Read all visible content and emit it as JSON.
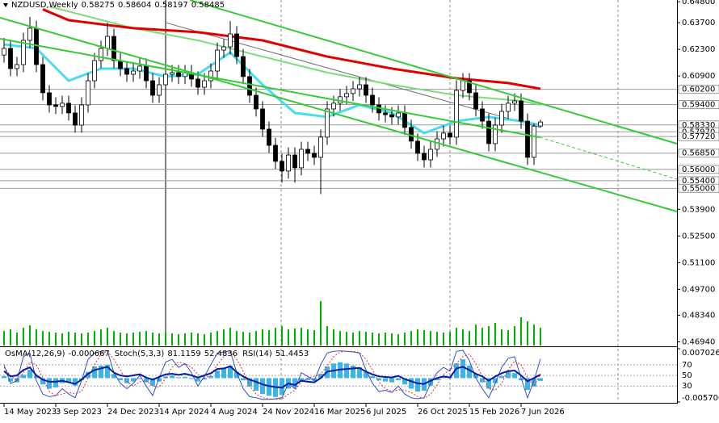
{
  "chart_data": {
    "type": "candlestick",
    "symbol": "NZDUSD,Weekly",
    "candles": [
      [
        0.62,
        0.629,
        0.616,
        0.6235
      ],
      [
        0.6235,
        0.6275,
        0.6089,
        0.6129
      ],
      [
        0.6129,
        0.619,
        0.6089,
        0.615
      ],
      [
        0.615,
        0.6317,
        0.611,
        0.6277
      ],
      [
        0.6277,
        0.64,
        0.6237,
        0.6341
      ],
      [
        0.6341,
        0.6381,
        0.611,
        0.615
      ],
      [
        0.615,
        0.619,
        0.5962,
        0.6002
      ],
      [
        0.6002,
        0.6042,
        0.5898,
        0.5938
      ],
      [
        0.5938,
        0.5978,
        0.589,
        0.593
      ],
      [
        0.593,
        0.5987,
        0.589,
        0.5947
      ],
      [
        0.5947,
        0.5987,
        0.5856,
        0.5896
      ],
      [
        0.5896,
        0.5936,
        0.5792,
        0.5832
      ],
      [
        0.5832,
        0.5978,
        0.5792,
        0.5938
      ],
      [
        0.5938,
        0.6105,
        0.5898,
        0.6065
      ],
      [
        0.6065,
        0.6211,
        0.6025,
        0.6171
      ],
      [
        0.6171,
        0.6275,
        0.6131,
        0.6235
      ],
      [
        0.6235,
        0.637,
        0.6195,
        0.6298
      ],
      [
        0.6298,
        0.6338,
        0.6131,
        0.6171
      ],
      [
        0.6171,
        0.6211,
        0.6089,
        0.6129
      ],
      [
        0.6129,
        0.6169,
        0.6059,
        0.6099
      ],
      [
        0.6099,
        0.6156,
        0.6059,
        0.6116
      ],
      [
        0.6116,
        0.6182,
        0.6076,
        0.6142
      ],
      [
        0.6142,
        0.6182,
        0.6025,
        0.6065
      ],
      [
        0.6065,
        0.6105,
        0.5949,
        0.5989
      ],
      [
        0.5989,
        0.6084,
        0.5949,
        0.6044
      ],
      [
        0.6044,
        0.6139,
        0.6004,
        0.6099
      ],
      [
        0.6099,
        0.6148,
        0.6059,
        0.6108
      ],
      [
        0.6108,
        0.6148,
        0.6047,
        0.6087
      ],
      [
        0.6087,
        0.6148,
        0.6047,
        0.6108
      ],
      [
        0.6108,
        0.6148,
        0.6034,
        0.6074
      ],
      [
        0.6074,
        0.6114,
        0.5991,
        0.6031
      ],
      [
        0.6031,
        0.6105,
        0.5991,
        0.6065
      ],
      [
        0.6065,
        0.6156,
        0.6025,
        0.6116
      ],
      [
        0.6116,
        0.6266,
        0.6076,
        0.6226
      ],
      [
        0.6226,
        0.6283,
        0.6186,
        0.6243
      ],
      [
        0.6243,
        0.6378,
        0.6203,
        0.6311
      ],
      [
        0.6311,
        0.6351,
        0.6152,
        0.6192
      ],
      [
        0.6192,
        0.6232,
        0.6047,
        0.6087
      ],
      [
        0.6087,
        0.6127,
        0.5949,
        0.5989
      ],
      [
        0.5989,
        0.6029,
        0.5877,
        0.5917
      ],
      [
        0.5917,
        0.5957,
        0.5771,
        0.5811
      ],
      [
        0.5811,
        0.5851,
        0.5686,
        0.5726
      ],
      [
        0.5726,
        0.5766,
        0.5602,
        0.5642
      ],
      [
        0.5642,
        0.5682,
        0.553,
        0.5591
      ],
      [
        0.5591,
        0.5715,
        0.5551,
        0.5675
      ],
      [
        0.5675,
        0.5715,
        0.553,
        0.5608
      ],
      [
        0.5608,
        0.5745,
        0.5568,
        0.5705
      ],
      [
        0.5705,
        0.5745,
        0.5644,
        0.5684
      ],
      [
        0.5684,
        0.5724,
        0.5623,
        0.5663
      ],
      [
        0.5663,
        0.5809,
        0.547,
        0.5769
      ],
      [
        0.5769,
        0.5957,
        0.5729,
        0.5917
      ],
      [
        0.5917,
        0.5987,
        0.5877,
        0.5947
      ],
      [
        0.5947,
        0.6021,
        0.5907,
        0.5981
      ],
      [
        0.5981,
        0.6038,
        0.5941,
        0.5998
      ],
      [
        0.5998,
        0.6063,
        0.5958,
        0.6023
      ],
      [
        0.6023,
        0.6084,
        0.5983,
        0.6044
      ],
      [
        0.6044,
        0.6084,
        0.5949,
        0.5989
      ],
      [
        0.5989,
        0.6029,
        0.5898,
        0.5938
      ],
      [
        0.5938,
        0.5978,
        0.5856,
        0.5896
      ],
      [
        0.5896,
        0.5936,
        0.5847,
        0.5887
      ],
      [
        0.5887,
        0.5927,
        0.5835,
        0.5875
      ],
      [
        0.5875,
        0.5936,
        0.5835,
        0.5896
      ],
      [
        0.5896,
        0.5936,
        0.578,
        0.582
      ],
      [
        0.582,
        0.586,
        0.5708,
        0.5748
      ],
      [
        0.5748,
        0.5788,
        0.5644,
        0.5684
      ],
      [
        0.5684,
        0.5724,
        0.561,
        0.565
      ],
      [
        0.565,
        0.5745,
        0.561,
        0.5705
      ],
      [
        0.5705,
        0.58,
        0.5665,
        0.576
      ],
      [
        0.576,
        0.583,
        0.572,
        0.579
      ],
      [
        0.579,
        0.583,
        0.5729,
        0.5769
      ],
      [
        0.5769,
        0.6068,
        0.5729,
        0.6014
      ],
      [
        0.6014,
        0.6105,
        0.5974,
        0.6065
      ],
      [
        0.6065,
        0.6105,
        0.5962,
        0.6002
      ],
      [
        0.6002,
        0.6042,
        0.5877,
        0.5917
      ],
      [
        0.5917,
        0.5957,
        0.5813,
        0.5853
      ],
      [
        0.5853,
        0.5893,
        0.5695,
        0.5735
      ],
      [
        0.5735,
        0.5872,
        0.5695,
        0.5832
      ],
      [
        0.5832,
        0.5944,
        0.5792,
        0.5904
      ],
      [
        0.5904,
        0.5987,
        0.5864,
        0.5947
      ],
      [
        0.5947,
        0.5999,
        0.5907,
        0.5959
      ],
      [
        0.5959,
        0.5999,
        0.5813,
        0.5853
      ],
      [
        0.5853,
        0.5893,
        0.5623,
        0.5663
      ],
      [
        0.5663,
        0.584,
        0.5623,
        0.5827
      ],
      [
        0.58275,
        0.58604,
        0.58197,
        0.58485
      ]
    ],
    "ylim": [
      0.4675,
      0.6489
    ],
    "yticks": [
      {
        "value": 0.648,
        "label": "0.64800"
      },
      {
        "value": 0.637,
        "label": "0.63700"
      },
      {
        "value": 0.623,
        "label": "0.62300"
      },
      {
        "value": 0.609,
        "label": "0.60900"
      },
      {
        "value": 0.539,
        "label": "0.53900"
      },
      {
        "value": 0.525,
        "label": "0.52500"
      },
      {
        "value": 0.511,
        "label": "0.51100"
      },
      {
        "value": 0.497,
        "label": "0.49700"
      },
      {
        "value": 0.4834,
        "label": "0.48340"
      },
      {
        "value": 0.4694,
        "label": "0.46940"
      }
    ],
    "levels": [
      {
        "value": 0.602,
        "label": "0.60200"
      },
      {
        "value": 0.594,
        "label": "0.59400"
      },
      {
        "value": 0.5833,
        "label": "0.58330"
      },
      {
        "value": 0.5797,
        "label": "0.57970"
      },
      {
        "value": 0.5772,
        "label": "0.57720"
      },
      {
        "value": 0.5685,
        "label": "0.56850"
      },
      {
        "value": 0.56,
        "label": "0.56000"
      },
      {
        "value": 0.554,
        "label": "0.55400"
      },
      {
        "value": 0.55,
        "label": "0.55000"
      }
    ],
    "xticks": [
      {
        "value": 0,
        "label": "14 May 2023"
      },
      {
        "value": 8,
        "label": "3 Sep 2023"
      },
      {
        "value": 16,
        "label": "24 Dec 2023"
      },
      {
        "value": 24,
        "label": "14 Apr 2024"
      },
      {
        "value": 32,
        "label": "4 Aug 2024"
      },
      {
        "value": 40,
        "label": "24 Nov 2024"
      },
      {
        "value": 48,
        "label": "16 Mar 2025"
      },
      {
        "value": 56,
        "label": "6 Jul 2025"
      },
      {
        "value": 64,
        "label": "26 Oct 2025"
      },
      {
        "value": 72,
        "label": "15 Feb 2026"
      },
      {
        "value": 80,
        "label": "7 Jun 2026"
      }
    ],
    "moving_averages": [
      {
        "color": "#707070",
        "width": 1,
        "x": [
          25,
          83
        ],
        "values": [
          0.637,
          0.582
        ]
      },
      {
        "color": "#7cdc7c",
        "width": 2,
        "x": [
          7,
          20,
          30,
          40,
          50,
          60,
          70,
          80,
          83
        ],
        "values": [
          0.6455,
          0.6341,
          0.6277,
          0.6192,
          0.6108,
          0.6044,
          0.5989,
          0.5959,
          0.5938
        ]
      },
      {
        "color": "#e00000",
        "width": 3,
        "x": [
          6,
          10,
          20,
          30,
          40,
          50,
          60,
          70,
          78,
          83
        ],
        "values": [
          0.644,
          0.6383,
          0.6341,
          0.632,
          0.6277,
          0.6192,
          0.6129,
          0.6078,
          0.6053,
          0.6023
        ]
      },
      {
        "color": "#4adcec",
        "width": 3,
        "x": [
          0,
          5,
          10,
          15,
          20,
          25,
          30,
          35,
          40,
          45,
          50,
          55,
          60,
          65,
          70,
          75,
          80,
          83
        ],
        "values": [
          0.6256,
          0.6235,
          0.6065,
          0.6129,
          0.6129,
          0.6087,
          0.6099,
          0.6214,
          0.6044,
          0.5896,
          0.5875,
          0.5938,
          0.5896,
          0.579,
          0.5853,
          0.5875,
          0.5853,
          0.5832
        ]
      }
    ],
    "volume": {
      "color": "#00b400",
      "ylim": [
        0,
        60
      ],
      "values": [
        18,
        20,
        16,
        22,
        25,
        20,
        18,
        17,
        16,
        15,
        17,
        16,
        15,
        16,
        18,
        20,
        22,
        18,
        16,
        15,
        16,
        17,
        18,
        16,
        15,
        16,
        15,
        14,
        15,
        16,
        15,
        14,
        16,
        18,
        20,
        22,
        18,
        17,
        16,
        18,
        20,
        19,
        22,
        24,
        20,
        21,
        22,
        20,
        19,
        55,
        24,
        20,
        18,
        17,
        16,
        18,
        17,
        16,
        15,
        16,
        15,
        14,
        16,
        18,
        20,
        19,
        18,
        17,
        16,
        17,
        22,
        20,
        18,
        26,
        22,
        24,
        28,
        20,
        19,
        24,
        35,
        30,
        26,
        22
      ]
    },
    "oscillator": {
      "osma": {
        "name": "OsMA(12,26,9)",
        "color": "#3cb4e6",
        "ylim": [
          -0.0057,
          0.0070262
        ],
        "yticks": [
          {
            "value": 0.0070262,
            "label": "0.0070262"
          },
          {
            "value": -0.0057,
            "label": "-0.0057000"
          }
        ],
        "values": [
          0.0005,
          -0.0008,
          -0.001,
          0.0008,
          0.002,
          0.0005,
          -0.0015,
          -0.0025,
          -0.0022,
          -0.0012,
          -0.001,
          -0.0018,
          -0.0005,
          0.0015,
          0.0028,
          0.003,
          0.0032,
          0.001,
          -0.0005,
          -0.0012,
          -0.0008,
          -0.0002,
          -0.001,
          -0.0018,
          -0.0008,
          0.0004,
          0.0006,
          0.0002,
          0.0003,
          -0.0002,
          -0.0008,
          -0.0003,
          0.0005,
          0.0018,
          0.0025,
          0.003,
          0.0015,
          -0.0005,
          -0.002,
          -0.003,
          -0.0038,
          -0.0042,
          -0.0045,
          -0.004,
          -0.0025,
          -0.0022,
          -0.0008,
          -0.0005,
          -0.0006,
          0.001,
          0.0028,
          0.0035,
          0.0038,
          0.0035,
          0.003,
          0.0026,
          0.0015,
          0.0005,
          -0.0005,
          -0.0008,
          -0.001,
          -0.0005,
          -0.0015,
          -0.0025,
          -0.0032,
          -0.003,
          -0.0018,
          -0.0005,
          0.0005,
          0.0003,
          0.0035,
          0.0045,
          0.003,
          0.001,
          -0.001,
          -0.0025,
          -0.0012,
          0.0005,
          0.0015,
          0.0012,
          -0.0005,
          -0.0028,
          -0.002,
          -0.000667
        ]
      },
      "ylim": [
        0,
        100
      ],
      "yticks": [
        70,
        50,
        30
      ],
      "stoch_name": "Stoch(5,3,3)",
      "stoch": [
        {
          "color": "#3050d0",
          "width": 1,
          "dash": "",
          "values": [
            70,
            35,
            40,
            85,
            92,
            40,
            15,
            10,
            12,
            25,
            15,
            8,
            40,
            80,
            92,
            95,
            96,
            55,
            35,
            25,
            35,
            50,
            30,
            12,
            45,
            75,
            80,
            65,
            72,
            55,
            30,
            48,
            70,
            92,
            94,
            96,
            55,
            25,
            10,
            8,
            5,
            5,
            6,
            8,
            35,
            25,
            55,
            48,
            40,
            70,
            92,
            95,
            96,
            95,
            94,
            92,
            60,
            35,
            20,
            22,
            18,
            30,
            15,
            8,
            6,
            8,
            35,
            55,
            65,
            58,
            95,
            97,
            78,
            45,
            25,
            8,
            35,
            65,
            82,
            85,
            45,
            8,
            40,
            81.1159
          ]
        },
        {
          "color": "#e03030",
          "width": 1,
          "dash": "2 2",
          "values": [
            65,
            50,
            40,
            55,
            75,
            70,
            45,
            20,
            12,
            15,
            18,
            15,
            20,
            45,
            70,
            90,
            95,
            80,
            60,
            38,
            30,
            38,
            40,
            30,
            28,
            45,
            65,
            75,
            72,
            65,
            52,
            45,
            50,
            70,
            85,
            95,
            80,
            58,
            30,
            15,
            8,
            6,
            5,
            6,
            15,
            22,
            38,
            45,
            48,
            52,
            68,
            85,
            94,
            95,
            95,
            93,
            80,
            60,
            38,
            25,
            20,
            23,
            22,
            18,
            10,
            7,
            15,
            32,
            52,
            60,
            72,
            85,
            90,
            72,
            48,
            25,
            22,
            35,
            60,
            77,
            70,
            45,
            30,
            52.4836
          ]
        }
      ],
      "rsi_name": "RSI(14)",
      "rsi": {
        "color": "#0a1aa0",
        "width": 2,
        "dash": "",
        "values": [
          58,
          48,
          50,
          60,
          65,
          50,
          42,
          38,
          38,
          40,
          37,
          34,
          42,
          53,
          60,
          63,
          66,
          55,
          50,
          48,
          50,
          52,
          46,
          42,
          47,
          52,
          53,
          51,
          53,
          50,
          46,
          50,
          54,
          62,
          63,
          67,
          56,
          48,
          42,
          38,
          33,
          30,
          28,
          27,
          35,
          32,
          40,
          38,
          37,
          45,
          57,
          59,
          61,
          62,
          63,
          64,
          57,
          52,
          48,
          47,
          46,
          49,
          43,
          39,
          35,
          34,
          40,
          45,
          48,
          46,
          63,
          66,
          60,
          53,
          48,
          40,
          48,
          54,
          58,
          59,
          50,
          39,
          45,
          51.4453
        ]
      }
    }
  }
}
